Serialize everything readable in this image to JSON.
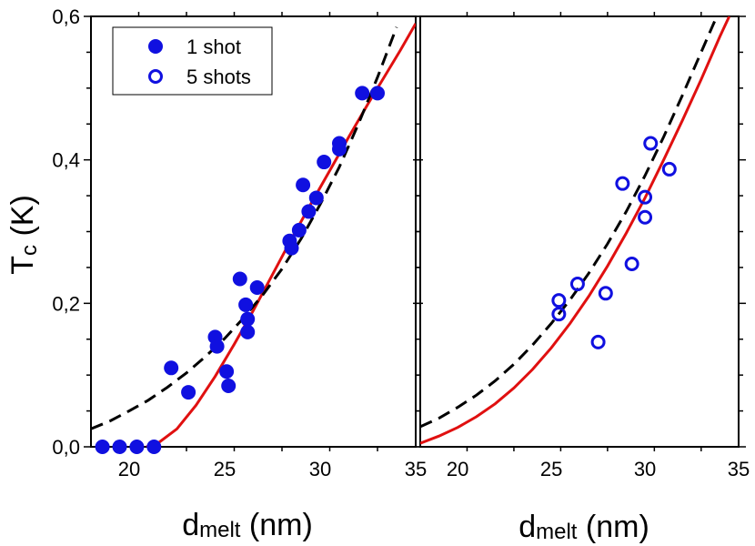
{
  "chart_data": [
    {
      "type": "scatter",
      "panel": "left",
      "xlim": [
        18,
        35
      ],
      "ylim": [
        0,
        0.6
      ],
      "xticks": [
        20,
        25,
        30,
        35
      ],
      "xtick_labels": [
        "20",
        "25",
        "30",
        "35"
      ],
      "yticks": [
        0,
        0.2,
        0.4,
        0.6
      ],
      "ytick_labels": [
        "0,0",
        "0,2",
        "0,4",
        "0,6"
      ],
      "ylabel_main": "T",
      "ylabel_sub": "c",
      "ylabel_rest": " (K)",
      "xlabel_main": "d",
      "xlabel_sub": "melt",
      "xlabel_rest": " (nm)",
      "legend": {
        "position": "top-left",
        "entries": [
          {
            "label": "1 shot",
            "marker": "filled-circle"
          },
          {
            "label": "5 shots",
            "marker": "open-circle"
          }
        ]
      },
      "series": [
        {
          "name": "1 shot",
          "marker": "filled-circle",
          "color": "#1010e0",
          "points": [
            [
              18.6,
              0.0
            ],
            [
              19.5,
              0.0
            ],
            [
              20.4,
              0.0
            ],
            [
              21.3,
              0.0
            ],
            [
              22.2,
              0.11
            ],
            [
              23.1,
              0.076
            ],
            [
              24.5,
              0.153
            ],
            [
              24.6,
              0.14
            ],
            [
              25.1,
              0.105
            ],
            [
              25.2,
              0.085
            ],
            [
              25.8,
              0.234
            ],
            [
              26.1,
              0.198
            ],
            [
              26.2,
              0.178
            ],
            [
              26.2,
              0.16
            ],
            [
              26.7,
              0.222
            ],
            [
              28.4,
              0.287
            ],
            [
              28.5,
              0.277
            ],
            [
              28.9,
              0.302
            ],
            [
              29.1,
              0.365
            ],
            [
              29.4,
              0.328
            ],
            [
              29.8,
              0.347
            ],
            [
              30.2,
              0.397
            ],
            [
              31.0,
              0.415
            ],
            [
              31.0,
              0.423
            ],
            [
              32.2,
              0.493
            ],
            [
              33.0,
              0.493
            ]
          ]
        },
        {
          "name": "model fit (solid)",
          "style": "solid",
          "color": "#e01010",
          "points": [
            [
              20.9,
              0.0
            ],
            [
              21.5,
              0.005
            ],
            [
              22.5,
              0.025
            ],
            [
              23.5,
              0.058
            ],
            [
              24.5,
              0.098
            ],
            [
              25.5,
              0.143
            ],
            [
              26.5,
              0.19
            ],
            [
              27.5,
              0.24
            ],
            [
              28.5,
              0.29
            ],
            [
              29.5,
              0.338
            ],
            [
              30.5,
              0.385
            ],
            [
              31.5,
              0.432
            ],
            [
              32.5,
              0.478
            ],
            [
              33.5,
              0.522
            ],
            [
              34.2,
              0.553
            ],
            [
              35.0,
              0.59
            ]
          ]
        },
        {
          "name": "model fit (dashed)",
          "style": "dashed",
          "color": "#000000",
          "points": [
            [
              18.0,
              0.025
            ],
            [
              19.0,
              0.036
            ],
            [
              20.0,
              0.05
            ],
            [
              21.0,
              0.065
            ],
            [
              22.0,
              0.083
            ],
            [
              23.0,
              0.103
            ],
            [
              24.0,
              0.126
            ],
            [
              25.0,
              0.151
            ],
            [
              26.0,
              0.18
            ],
            [
              27.0,
              0.212
            ],
            [
              28.0,
              0.248
            ],
            [
              29.0,
              0.29
            ],
            [
              30.0,
              0.338
            ],
            [
              31.0,
              0.39
            ],
            [
              32.0,
              0.45
            ],
            [
              33.0,
              0.515
            ],
            [
              34.0,
              0.585
            ]
          ]
        }
      ]
    },
    {
      "type": "scatter",
      "panel": "right",
      "xlim": [
        18,
        35
      ],
      "ylim": [
        0,
        0.6
      ],
      "xticks": [
        20,
        25,
        30,
        35
      ],
      "xtick_labels": [
        "20",
        "25",
        "30",
        "35"
      ],
      "yticks": [
        0,
        0.2,
        0.4,
        0.6
      ],
      "xlabel_main": "d",
      "xlabel_sub": "melt",
      "xlabel_rest": " (nm)",
      "series": [
        {
          "name": "5 shots",
          "marker": "open-circle",
          "color": "#1010e0",
          "points": [
            [
              25.4,
              0.185
            ],
            [
              25.4,
              0.204
            ],
            [
              26.4,
              0.227
            ],
            [
              27.5,
              0.146
            ],
            [
              27.9,
              0.214
            ],
            [
              28.8,
              0.367
            ],
            [
              29.3,
              0.255
            ],
            [
              30.0,
              0.32
            ],
            [
              30.0,
              0.348
            ],
            [
              30.3,
              0.423
            ],
            [
              31.3,
              0.387
            ]
          ]
        },
        {
          "name": "model fit (solid)",
          "style": "solid",
          "color": "#e01010",
          "points": [
            [
              18.0,
              0.005
            ],
            [
              19.0,
              0.015
            ],
            [
              20.0,
              0.027
            ],
            [
              21.0,
              0.042
            ],
            [
              22.0,
              0.06
            ],
            [
              23.0,
              0.082
            ],
            [
              24.0,
              0.108
            ],
            [
              25.0,
              0.138
            ],
            [
              26.0,
              0.172
            ],
            [
              27.0,
              0.21
            ],
            [
              28.0,
              0.252
            ],
            [
              29.0,
              0.298
            ],
            [
              30.0,
              0.347
            ],
            [
              31.0,
              0.4
            ],
            [
              32.0,
              0.455
            ],
            [
              33.0,
              0.512
            ],
            [
              34.0,
              0.572
            ],
            [
              34.5,
              0.6
            ]
          ]
        },
        {
          "name": "model fit (dashed)",
          "style": "dashed",
          "color": "#000000",
          "points": [
            [
              18.0,
              0.028
            ],
            [
              19.0,
              0.04
            ],
            [
              20.0,
              0.055
            ],
            [
              21.0,
              0.072
            ],
            [
              22.0,
              0.092
            ],
            [
              23.0,
              0.115
            ],
            [
              24.0,
              0.142
            ],
            [
              25.0,
              0.172
            ],
            [
              26.0,
              0.205
            ],
            [
              27.0,
              0.242
            ],
            [
              28.0,
              0.283
            ],
            [
              29.0,
              0.328
            ],
            [
              30.0,
              0.378
            ],
            [
              31.0,
              0.432
            ],
            [
              32.0,
              0.49
            ],
            [
              33.0,
              0.55
            ],
            [
              34.0,
              0.61
            ]
          ]
        }
      ]
    }
  ]
}
